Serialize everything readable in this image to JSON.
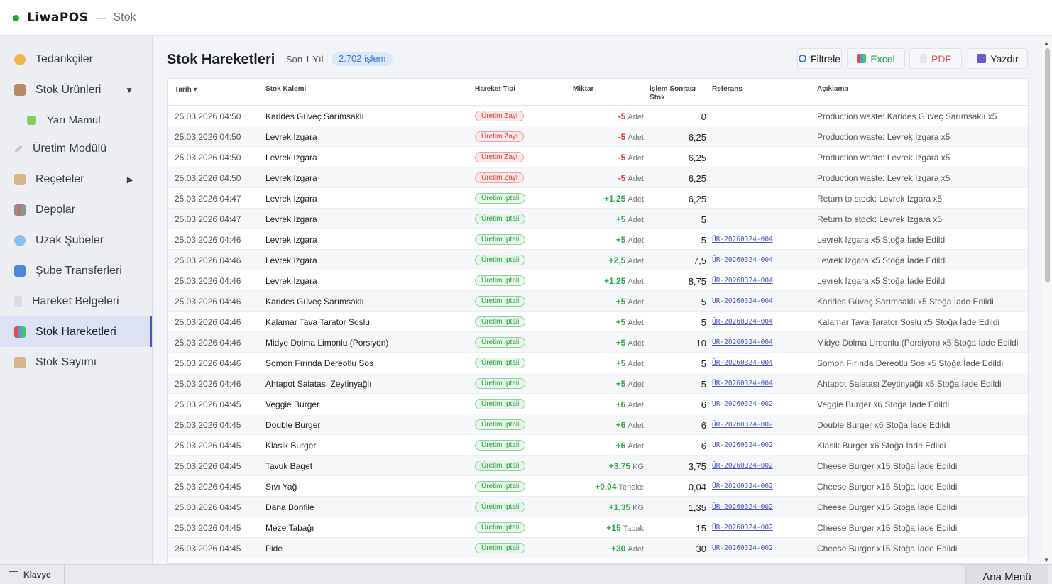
{
  "header": {
    "brand": "LiwaPOS",
    "separator": "—",
    "section": "Stok"
  },
  "sidebar": {
    "items": [
      {
        "label": "Tedarikçiler",
        "icon": "handshake-icon",
        "color": "#f0b44a"
      },
      {
        "label": "Stok Ürünleri",
        "icon": "box-icon",
        "color": "#b58a5e",
        "arrow": "▼"
      },
      {
        "label": "Yarı Mamul",
        "icon": "puzzle-icon",
        "color": "#7fcf5b"
      },
      {
        "label": "Üretim Modülü",
        "icon": "wrench-icon",
        "color": "#b0b4ba"
      },
      {
        "label": "Reçeteler",
        "icon": "clipboard-icon",
        "color": "#c79a6a",
        "arrow": "▶"
      },
      {
        "label": "Depolar",
        "icon": "factory-icon",
        "color": "#8a8f98"
      },
      {
        "label": "Uzak Şubeler",
        "icon": "globe-icon",
        "color": "#6aa8e0"
      },
      {
        "label": "Şube Transferleri",
        "icon": "transfer-icon",
        "color": "#4f88d8"
      },
      {
        "label": "Hareket Belgeleri",
        "icon": "document-icon",
        "color": "#c8c8d8"
      },
      {
        "label": "Stok Hareketleri",
        "icon": "bar-chart-icon",
        "color": "#5b7fd8"
      },
      {
        "label": "Stok Sayımı",
        "icon": "clipboard-icon",
        "color": "#c79a6a"
      }
    ]
  },
  "main": {
    "title": "Stok Hareketleri",
    "period": "Son 1 Yıl",
    "count_badge": "2.702 işlem",
    "toolbar": {
      "filter": "Filtrele",
      "excel": "Excel",
      "pdf": "PDF",
      "print": "Yazdır"
    }
  },
  "table": {
    "headers": {
      "date": "Tarih ▾",
      "item": "Stok Kalemi",
      "type": "Hareket Tipi",
      "qty": "Miktar",
      "after": "İşlem Sonrası Stok",
      "ref": "Referans",
      "desc": "Açıklama"
    },
    "rows": [
      {
        "date": "25.03.2026 04:50",
        "item": "Karides Güveç Sarımsaklı",
        "type": "Üretim Zayi",
        "kind": "zayi",
        "qty": "-5",
        "unit": "Adet",
        "after": "0",
        "ref": "",
        "desc": "Production waste: Karides Güveç Sarımsaklı x5"
      },
      {
        "date": "25.03.2026 04:50",
        "item": "Levrek Izgara",
        "type": "Üretim Zayi",
        "kind": "zayi",
        "qty": "-5",
        "unit": "Adet",
        "after": "6,25",
        "ref": "",
        "desc": "Production waste: Levrek Izgara x5"
      },
      {
        "date": "25.03.2026 04:50",
        "item": "Levrek Izgara",
        "type": "Üretim Zayi",
        "kind": "zayi",
        "qty": "-5",
        "unit": "Adet",
        "after": "6,25",
        "ref": "",
        "desc": "Production waste: Levrek Izgara x5"
      },
      {
        "date": "25.03.2026 04:50",
        "item": "Levrek Izgara",
        "type": "Üretim Zayi",
        "kind": "zayi",
        "qty": "-5",
        "unit": "Adet",
        "after": "6,25",
        "ref": "",
        "desc": "Production waste: Levrek Izgara x5"
      },
      {
        "date": "25.03.2026 04:47",
        "item": "Levrek Izgara",
        "type": "Üretim İptali",
        "kind": "iptal",
        "qty": "+1,25",
        "unit": "Adet",
        "after": "6,25",
        "ref": "",
        "desc": "Return to stock: Levrek Izgara x5"
      },
      {
        "date": "25.03.2026 04:47",
        "item": "Levrek Izgara",
        "type": "Üretim İptali",
        "kind": "iptal",
        "qty": "+5",
        "unit": "Adet",
        "after": "5",
        "ref": "",
        "desc": "Return to stock: Levrek Izgara x5"
      },
      {
        "date": "25.03.2026 04:46",
        "item": "Levrek Izgara",
        "type": "Üretim İptali",
        "kind": "iptal",
        "qty": "+5",
        "unit": "Adet",
        "after": "5",
        "ref": "ÜR-20260324-004",
        "desc": "Levrek Izgara x5 Stoğa İade Edildi"
      },
      {
        "date": "25.03.2026 04:46",
        "item": "Levrek Izgara",
        "type": "Üretim İptali",
        "kind": "iptal",
        "qty": "+2,5",
        "unit": "Adet",
        "after": "7,5",
        "ref": "ÜR-20260324-004",
        "desc": "Levrek Izgara x5 Stoğa İade Edildi"
      },
      {
        "date": "25.03.2026 04:46",
        "item": "Levrek Izgara",
        "type": "Üretim İptali",
        "kind": "iptal",
        "qty": "+1,25",
        "unit": "Adet",
        "after": "8,75",
        "ref": "ÜR-20260324-004",
        "desc": "Levrek Izgara x5 Stoğa İade Edildi"
      },
      {
        "date": "25.03.2026 04:46",
        "item": "Karides Güveç Sarımsaklı",
        "type": "Üretim İptali",
        "kind": "iptal",
        "qty": "+5",
        "unit": "Adet",
        "after": "5",
        "ref": "ÜR-20260324-004",
        "desc": "Karides Güveç Sarımsaklı x5 Stoğa İade Edildi"
      },
      {
        "date": "25.03.2026 04:46",
        "item": "Kalamar Tava Tarator Soslu",
        "type": "Üretim İptali",
        "kind": "iptal",
        "qty": "+5",
        "unit": "Adet",
        "after": "5",
        "ref": "ÜR-20260324-004",
        "desc": "Kalamar Tava Tarator Soslu x5 Stoğa İade Edildi"
      },
      {
        "date": "25.03.2026 04:46",
        "item": "Midye Dolma Limonlu (Porsiyon)",
        "type": "Üretim İptali",
        "kind": "iptal",
        "qty": "+5",
        "unit": "Adet",
        "after": "10",
        "ref": "ÜR-20260324-004",
        "desc": "Midye Dolma Limonlu (Porsiyon) x5 Stoğa İade Edildi"
      },
      {
        "date": "25.03.2026 04:46",
        "item": "Somon Fırında Dereotlu Sos",
        "type": "Üretim İptali",
        "kind": "iptal",
        "qty": "+5",
        "unit": "Adet",
        "after": "5",
        "ref": "ÜR-20260324-004",
        "desc": "Somon Fırında Dereotlu Sos x5 Stoğa İade Edildi"
      },
      {
        "date": "25.03.2026 04:46",
        "item": "Ahtapot Salatası Zeytinyağlı",
        "type": "Üretim İptali",
        "kind": "iptal",
        "qty": "+5",
        "unit": "Adet",
        "after": "5",
        "ref": "ÜR-20260324-004",
        "desc": "Ahtapot Salatası Zeytinyağlı x5 Stoğa İade Edildi"
      },
      {
        "date": "25.03.2026 04:45",
        "item": "Veggie Burger",
        "type": "Üretim İptali",
        "kind": "iptal",
        "qty": "+6",
        "unit": "Adet",
        "after": "6",
        "ref": "ÜR-20260324-002",
        "desc": "Veggie Burger x6 Stoğa İade Edildi"
      },
      {
        "date": "25.03.2026 04:45",
        "item": "Double Burger",
        "type": "Üretim İptali",
        "kind": "iptal",
        "qty": "+6",
        "unit": "Adet",
        "after": "6",
        "ref": "ÜR-20260324-002",
        "desc": "Double Burger x6 Stoğa İade Edildi"
      },
      {
        "date": "25.03.2026 04:45",
        "item": "Klasik Burger",
        "type": "Üretim İptali",
        "kind": "iptal",
        "qty": "+6",
        "unit": "Adet",
        "after": "6",
        "ref": "ÜR-20260324-002",
        "desc": "Klasik Burger x6 Stoğa İade Edildi"
      },
      {
        "date": "25.03.2026 04:45",
        "item": "Tavuk Baget",
        "type": "Üretim İptali",
        "kind": "iptal",
        "qty": "+3,75",
        "unit": "KG",
        "after": "3,75",
        "ref": "ÜR-20260324-002",
        "desc": "Cheese Burger x15 Stoğa İade Edildi"
      },
      {
        "date": "25.03.2026 04:45",
        "item": "Sıvı Yağ",
        "type": "Üretim İptali",
        "kind": "iptal",
        "qty": "+0,04",
        "unit": "Teneke",
        "after": "0,04",
        "ref": "ÜR-20260324-002",
        "desc": "Cheese Burger x15 Stoğa İade Edildi"
      },
      {
        "date": "25.03.2026 04:45",
        "item": "Dana Bonfile",
        "type": "Üretim İptali",
        "kind": "iptal",
        "qty": "+1,35",
        "unit": "KG",
        "after": "1,35",
        "ref": "ÜR-20260324-002",
        "desc": "Cheese Burger x15 Stoğa İade Edildi"
      },
      {
        "date": "25.03.2026 04:45",
        "item": "Meze Tabağı",
        "type": "Üretim İptali",
        "kind": "iptal",
        "qty": "+15",
        "unit": "Tabak",
        "after": "15",
        "ref": "ÜR-20260324-002",
        "desc": "Cheese Burger x15 Stoğa İade Edildi"
      },
      {
        "date": "25.03.2026 04:45",
        "item": "Pide",
        "type": "Üretim İptali",
        "kind": "iptal",
        "qty": "+30",
        "unit": "Adet",
        "after": "30",
        "ref": "ÜR-20260324-002",
        "desc": "Cheese Burger x15 Stoğa İade Edildi"
      }
    ]
  },
  "bottombar": {
    "keyboard": "Klavye",
    "main_menu": "Ana Menü"
  },
  "colors": {
    "accent": "#4b57c8",
    "positive": "#2faa48",
    "negative": "#e53a3a"
  }
}
